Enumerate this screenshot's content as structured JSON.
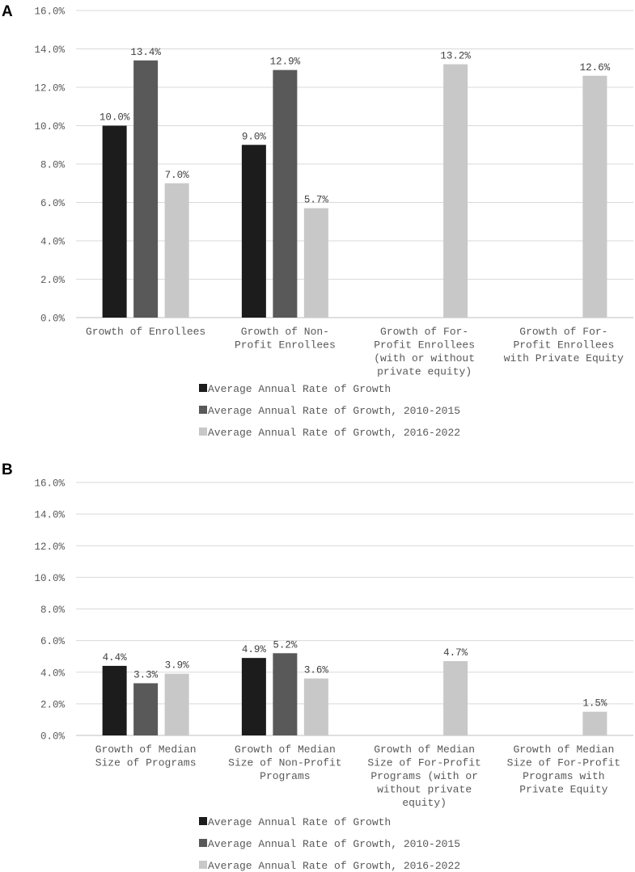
{
  "chart_data": [
    {
      "type": "bar",
      "panel_label": "A",
      "categories": [
        [
          "Growth of Enrollees"
        ],
        [
          "Growth of Non-",
          "Profit Enrollees"
        ],
        [
          "Growth of For-",
          "Profit Enrollees",
          "(with or without",
          "private equity)"
        ],
        [
          "Growth of For-",
          "Profit Enrollees",
          "with Private Equity"
        ]
      ],
      "series": [
        {
          "name": "Average Annual Rate of Growth",
          "values": [
            10.0,
            9.0,
            null,
            null
          ],
          "labels": [
            "10.0%",
            "9.0%",
            "",
            ""
          ],
          "color": "#1c1c1c"
        },
        {
          "name": "Average Annual Rate of Growth, 2010-2015",
          "values": [
            13.4,
            12.9,
            null,
            null
          ],
          "labels": [
            "13.4%",
            "12.9%",
            "",
            ""
          ],
          "color": "#595959"
        },
        {
          "name": "Average Annual Rate of Growth, 2016-2022",
          "values": [
            7.0,
            5.7,
            13.2,
            12.6
          ],
          "labels": [
            "7.0%",
            "5.7%",
            "13.2%",
            "12.6%"
          ],
          "color": "#c8c8c8"
        }
      ],
      "yticks": [
        "0.0%",
        "2.0%",
        "4.0%",
        "6.0%",
        "8.0%",
        "10.0%",
        "12.0%",
        "14.0%",
        "16.0%"
      ],
      "ylim": [
        0,
        16
      ],
      "grid": true,
      "legend": "bottom"
    },
    {
      "type": "bar",
      "panel_label": "B",
      "categories": [
        [
          "Growth of Median",
          "Size of Programs"
        ],
        [
          "Growth of Median",
          "Size of Non-Profit",
          "Programs"
        ],
        [
          "Growth of Median",
          "Size of For-Profit",
          "Programs (with or",
          "without private",
          "equity)"
        ],
        [
          "Growth of Median",
          "Size of For-Profit",
          "Programs with",
          "Private Equity"
        ]
      ],
      "series": [
        {
          "name": "Average Annual Rate of Growth",
          "values": [
            4.4,
            4.9,
            null,
            null
          ],
          "labels": [
            "4.4%",
            "4.9%",
            "",
            ""
          ],
          "color": "#1c1c1c"
        },
        {
          "name": "Average Annual Rate of Growth, 2010-2015",
          "values": [
            3.3,
            5.2,
            null,
            null
          ],
          "labels": [
            "3.3%",
            "5.2%",
            "",
            ""
          ],
          "color": "#595959"
        },
        {
          "name": "Average Annual Rate of Growth, 2016-2022",
          "values": [
            3.9,
            3.6,
            4.7,
            1.5
          ],
          "labels": [
            "3.9%",
            "3.6%",
            "4.7%",
            "1.5%"
          ],
          "color": "#c8c8c8"
        }
      ],
      "yticks": [
        "0.0%",
        "2.0%",
        "4.0%",
        "6.0%",
        "8.0%",
        "10.0%",
        "12.0%",
        "14.0%",
        "16.0%"
      ],
      "ylim": [
        0,
        16
      ],
      "grid": true,
      "legend": "bottom"
    }
  ]
}
